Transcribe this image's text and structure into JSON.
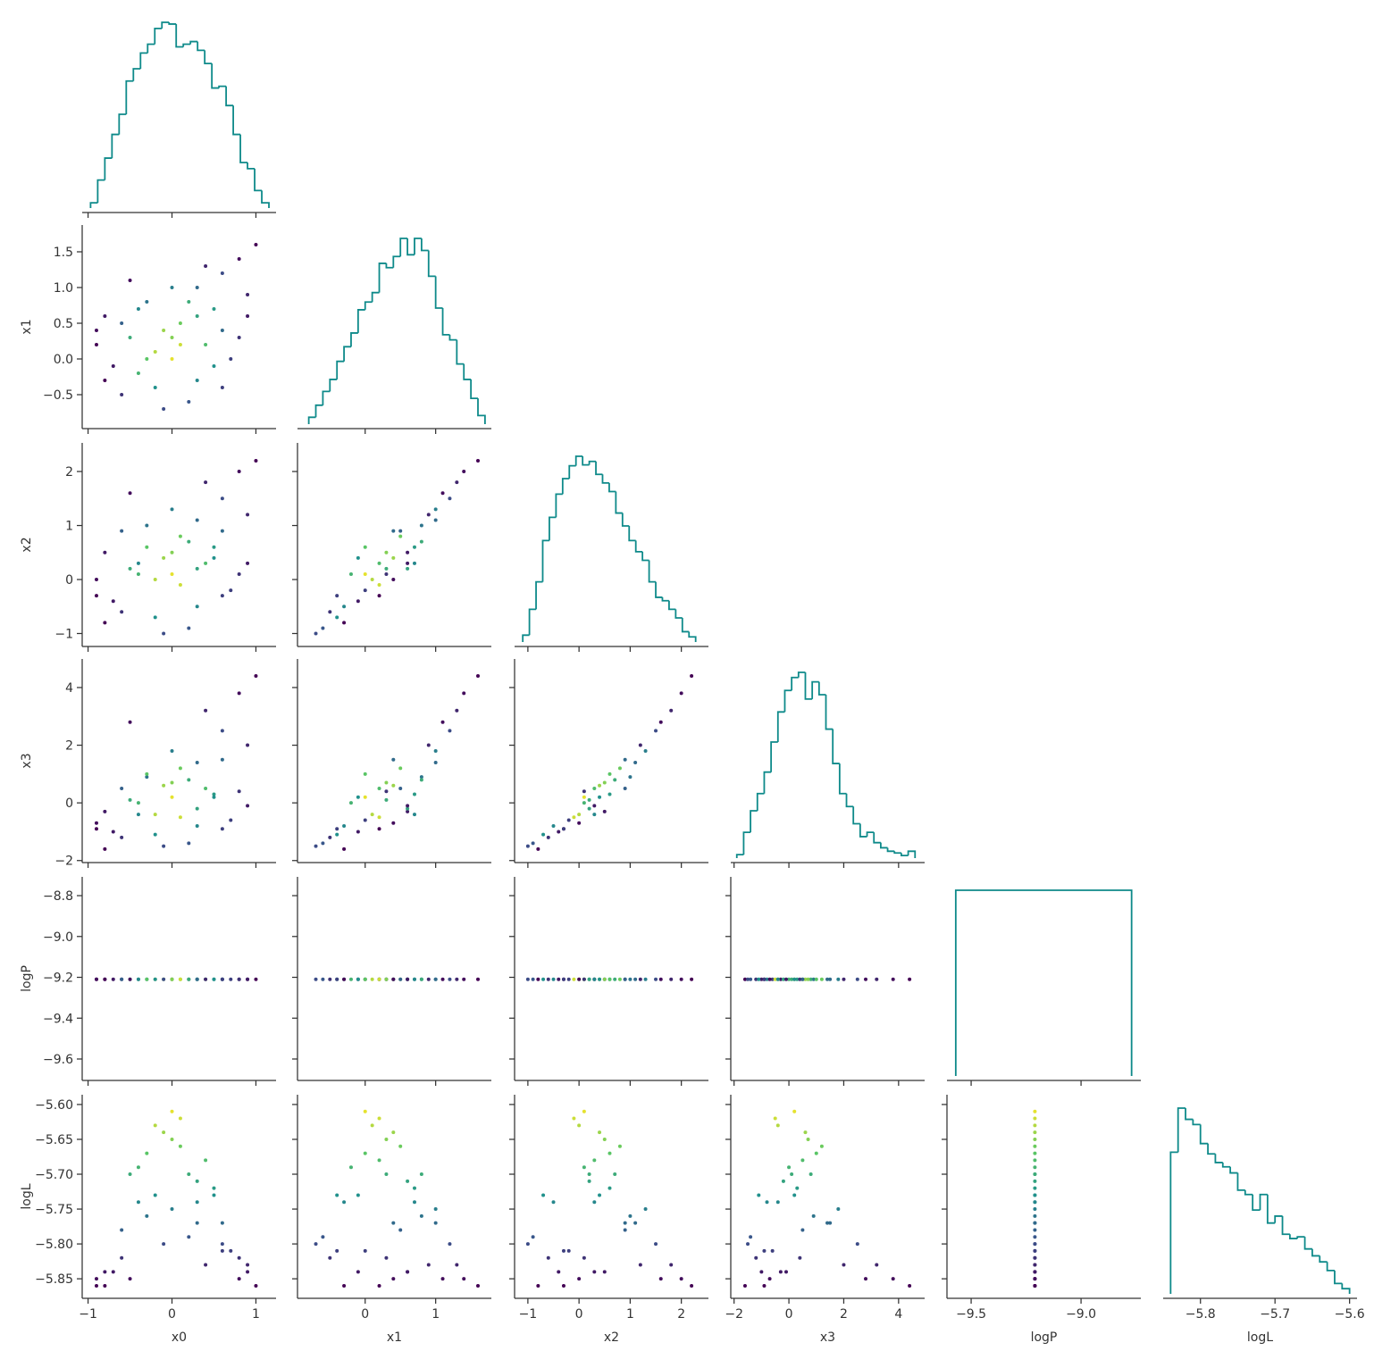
{
  "chart_data": {
    "type": "corner",
    "variables": [
      "x0",
      "x1",
      "x2",
      "x3",
      "logP",
      "logL"
    ],
    "hist_color": "#0e8a8a",
    "cmap": [
      "#440154",
      "#3b528b",
      "#21918c",
      "#5ec962",
      "#fde725"
    ],
    "clim": [
      -5.86,
      -5.6
    ],
    "axes": [
      {
        "xlim": [
          -1.07,
          1.24
        ],
        "xticks": [
          {
            "value": -1,
            "label": "−1"
          },
          0,
          1
        ]
      },
      {
        "xlim": [
          -0.96,
          1.79
        ],
        "xticks": [
          0,
          1
        ],
        "ylim": [
          -0.975,
          1.875
        ],
        "yticks": [
          {
            "value": -0.5,
            "label": "−0.5"
          },
          {
            "value": 0,
            "label": "0.0"
          },
          0.5,
          {
            "value": 1,
            "label": "1.0"
          },
          1.5
        ]
      },
      {
        "xlim": [
          -1.26,
          2.53
        ],
        "xticks": [
          {
            "value": -1,
            "label": "−1"
          },
          0,
          1,
          2
        ],
        "ylim": [
          -1.24,
          2.53
        ],
        "yticks": [
          {
            "value": -1,
            "label": "−1"
          },
          0,
          1,
          2
        ]
      },
      {
        "xlim": [
          -2.12,
          4.95
        ],
        "xticks": [
          {
            "value": -2,
            "label": "−2"
          },
          0,
          2,
          4
        ],
        "ylim": [
          -2.07,
          4.99
        ],
        "yticks": [
          {
            "value": -2,
            "label": "−2"
          },
          0,
          2,
          4
        ]
      },
      {
        "xlim": [
          -9.61,
          -8.728
        ],
        "xticks": [
          {
            "value": -9.5,
            "label": "−9.5"
          },
          {
            "value": -9,
            "label": "−9.0"
          }
        ],
        "ylim": [
          -9.705,
          -8.708
        ],
        "yticks": [
          {
            "value": -9.6,
            "label": "−9.6"
          },
          {
            "value": -9.4,
            "label": "−9.4"
          },
          {
            "value": -9.2,
            "label": "−9.2"
          },
          {
            "value": -9,
            "label": "−9.0"
          },
          {
            "value": -8.8,
            "label": "−8.8"
          }
        ]
      },
      {
        "xlim": [
          -5.85,
          -5.59
        ],
        "xticks": [
          {
            "value": -5.8,
            "label": "−5.8"
          },
          {
            "value": -5.7,
            "label": "−5.7"
          },
          {
            "value": -5.6,
            "label": "−5.6"
          }
        ],
        "ylim": [
          -5.878,
          -5.586
        ],
        "yticks": [
          {
            "value": -5.85,
            "label": "−5.85"
          },
          {
            "value": -5.8,
            "label": "−5.80"
          },
          {
            "value": -5.75,
            "label": "−5.75"
          },
          {
            "value": -5.7,
            "label": "−5.70"
          },
          {
            "value": -5.65,
            "label": "−5.65"
          },
          {
            "value": -5.6,
            "label": "−5.60"
          }
        ]
      }
    ],
    "histograms": [
      {
        "bins": [
          -0.97,
          -0.885,
          -0.8,
          -0.715,
          -0.63,
          -0.545,
          -0.46,
          -0.375,
          -0.29,
          -0.205,
          -0.12,
          -0.035,
          0.05,
          0.135,
          0.22,
          0.305,
          0.39,
          0.475,
          0.56,
          0.645,
          0.73,
          0.815,
          0.9,
          0.985,
          1.07,
          1.155
        ],
        "counts": [
          6,
          32,
          57,
          84,
          107,
          145,
          159,
          177,
          187,
          205,
          212,
          210,
          184,
          187,
          190,
          180,
          165,
          137,
          139,
          117,
          84,
          52,
          45,
          20,
          6
        ]
      },
      {
        "bins": [
          -0.8,
          -0.7,
          -0.6,
          -0.5,
          -0.4,
          -0.3,
          -0.2,
          -0.1,
          0,
          0.1,
          0.2,
          0.3,
          0.4,
          0.5,
          0.6,
          0.7,
          0.8,
          0.9,
          1,
          1.1,
          1.2,
          1.3,
          1.4,
          1.5,
          1.6,
          1.7
        ],
        "counts": [
          8,
          22,
          38,
          52,
          73,
          90,
          106,
          133,
          142,
          153,
          187,
          182,
          195,
          216,
          197,
          216,
          202,
          172,
          135,
          104,
          98,
          70,
          52,
          30,
          10
        ]
      },
      {
        "bins": [
          -1.1,
          -0.97,
          -0.84,
          -0.71,
          -0.58,
          -0.45,
          -0.32,
          -0.19,
          -0.06,
          0.07,
          0.2,
          0.33,
          0.46,
          0.59,
          0.72,
          0.85,
          0.98,
          1.11,
          1.24,
          1.37,
          1.5,
          1.63,
          1.76,
          1.89,
          2.02,
          2.15,
          2.28
        ],
        "counts": [
          8,
          38,
          70,
          118,
          145,
          172,
          190,
          205,
          216,
          206,
          210,
          195,
          185,
          175,
          150,
          135,
          118,
          105,
          95,
          70,
          52,
          48,
          38,
          28,
          12,
          6
        ]
      },
      {
        "bins": [
          -1.9,
          -1.65,
          -1.4,
          -1.15,
          -0.9,
          -0.65,
          -0.4,
          -0.15,
          0.1,
          0.35,
          0.6,
          0.85,
          1.1,
          1.35,
          1.6,
          1.85,
          2.1,
          2.35,
          2.6,
          2.85,
          3.1,
          3.35,
          3.6,
          3.85,
          4.1,
          4.35,
          4.6
        ],
        "counts": [
          4,
          30,
          55,
          75,
          100,
          135,
          170,
          195,
          210,
          216,
          185,
          205,
          190,
          150,
          110,
          75,
          60,
          40,
          25,
          30,
          18,
          12,
          8,
          6,
          3,
          8
        ]
      },
      {
        "bins": [
          -9.57,
          -8.77
        ],
        "counts": [
          1
        ]
      },
      {
        "bins": [
          -5.84,
          -5.83,
          -5.82,
          -5.81,
          -5.8,
          -5.79,
          -5.78,
          -5.77,
          -5.76,
          -5.75,
          -5.74,
          -5.73,
          -5.72,
          -5.71,
          -5.7,
          -5.69,
          -5.68,
          -5.67,
          -5.66,
          -5.65,
          -5.64,
          -5.63,
          -5.62,
          -5.61,
          -5.6
        ],
        "counts": [
          164,
          215,
          202,
          196,
          174,
          162,
          152,
          147,
          140,
          120,
          115,
          97,
          115,
          82,
          90,
          69,
          64,
          66,
          52,
          44,
          37,
          27,
          12,
          6
        ]
      }
    ],
    "samples": [
      [
        0.0,
        -0.5,
        0.6,
        0.8,
        -0.8,
        0.3,
        -0.2,
        0.1,
        -0.6,
        0.9,
        0.4,
        -0.3,
        0.2,
        -0.9,
        0.5,
        -0.1,
        0.7,
        -0.4,
        1.0,
        0.0,
        -0.7,
        0.3,
        0.6,
        -0.2,
        0.1,
        -0.5,
        0.8,
        -0.3,
        0.4,
        -0.8,
        0.2,
        -0.1,
        0.5,
        -0.6,
        0.0,
        0.9,
        -0.4,
        0.3,
        -0.9,
        0.6
      ],
      [
        0.0,
        0.3,
        1.2,
        1.4,
        0.6,
        -0.3,
        0.1,
        0.5,
        -0.5,
        0.9,
        0.2,
        0.8,
        -0.6,
        0.2,
        0.7,
        0.4,
        0.0,
        -0.2,
        1.6,
        1.0,
        -0.1,
        0.6,
        0.4,
        -0.4,
        0.2,
        1.1,
        0.3,
        0.0,
        1.3,
        -0.3,
        0.8,
        -0.7,
        -0.1,
        0.5,
        0.3,
        0.6,
        0.7,
        1.0,
        0.4,
        -0.4
      ],
      [
        0.1,
        0.2,
        1.5,
        2.0,
        0.5,
        -0.5,
        0.0,
        0.8,
        -0.6,
        1.2,
        0.3,
        1.0,
        -0.9,
        -0.3,
        0.6,
        0.4,
        -0.2,
        0.1,
        2.2,
        1.3,
        -0.4,
        0.2,
        0.9,
        -0.7,
        -0.1,
        1.6,
        0.1,
        0.6,
        1.8,
        -0.8,
        0.7,
        -1.0,
        0.4,
        0.9,
        0.5,
        0.3,
        0.3,
        1.1,
        0.0,
        -0.3
      ],
      [
        0.2,
        0.1,
        2.5,
        3.8,
        -0.3,
        -0.8,
        -0.4,
        1.2,
        -1.2,
        2.0,
        0.5,
        0.9,
        -1.4,
        -0.9,
        0.3,
        0.6,
        -0.6,
        0.0,
        4.4,
        1.8,
        -1.0,
        -0.2,
        1.5,
        -1.1,
        -0.5,
        2.8,
        0.4,
        1.0,
        3.2,
        -1.6,
        0.8,
        -1.5,
        0.2,
        0.5,
        0.7,
        -0.1,
        -0.4,
        1.4,
        -0.7,
        -0.9
      ],
      [
        -9.21,
        -9.21,
        -9.21,
        -9.21,
        -9.21,
        -9.21,
        -9.21,
        -9.21,
        -9.21,
        -9.21,
        -9.21,
        -9.21,
        -9.21,
        -9.21,
        -9.21,
        -9.21,
        -9.21,
        -9.21,
        -9.21,
        -9.21,
        -9.21,
        -9.21,
        -9.21,
        -9.21,
        -9.21,
        -9.21,
        -9.21,
        -9.21,
        -9.21,
        -9.21,
        -9.21,
        -9.21,
        -9.21,
        -9.21,
        -9.21,
        -9.21,
        -9.21,
        -9.21,
        -9.21,
        -9.21
      ],
      [
        -5.61,
        -5.7,
        -5.8,
        -5.85,
        -5.84,
        -5.74,
        -5.63,
        -5.66,
        -5.82,
        -5.83,
        -5.68,
        -5.76,
        -5.79,
        -5.86,
        -5.72,
        -5.64,
        -5.81,
        -5.69,
        -5.86,
        -5.75,
        -5.84,
        -5.71,
        -5.77,
        -5.73,
        -5.62,
        -5.85,
        -5.82,
        -5.67,
        -5.83,
        -5.86,
        -5.7,
        -5.8,
        -5.73,
        -5.78,
        -5.65,
        -5.84,
        -5.74,
        -5.77,
        -5.85,
        -5.81
      ]
    ]
  }
}
